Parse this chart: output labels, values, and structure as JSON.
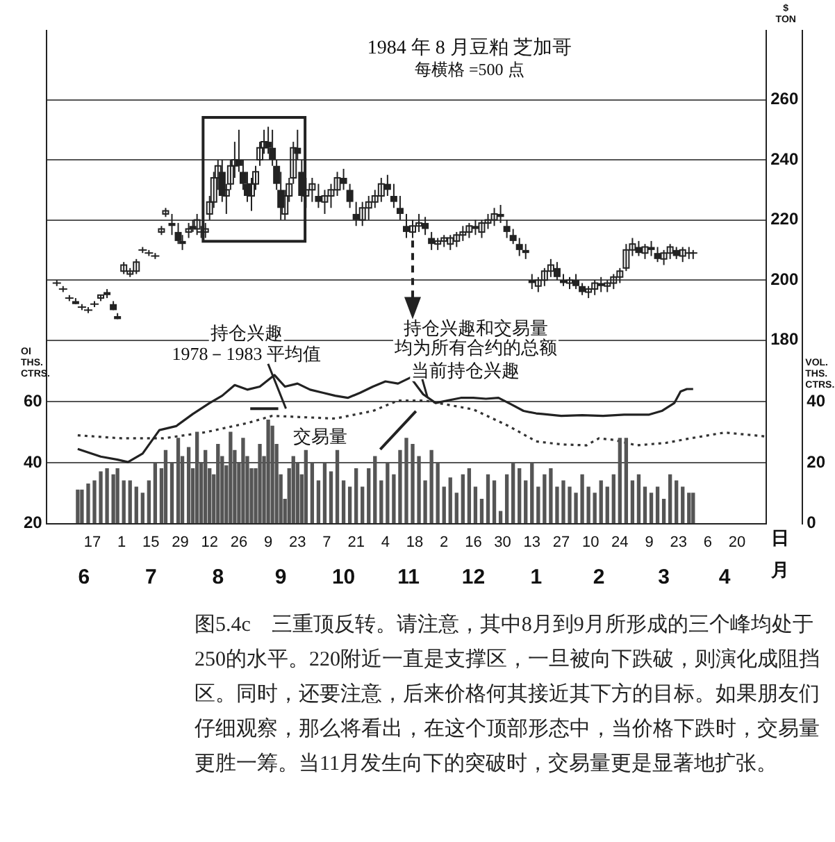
{
  "chart_data": {
    "type": "candlestick",
    "title": "1984 年 8 月豆粕 芝加哥",
    "subtitle": "每横格 =500 点",
    "ylabel": "$ TON",
    "y2label": "VOL. THS. CTRS.",
    "y3label": "OI THS. CTRS.",
    "xlabel": "日",
    "x2label": "月",
    "annotations": [
      "持仓兴趣",
      "1978－1983 平均值",
      {
        "text": "持仓兴趣和交易量",
        "x": "1983-11-17",
        "y": 215
      },
      "均为所有合约的总额",
      "当前持仓兴趣",
      "交易量",
      "图5.4c　三重顶反转。请注意，其中8月到9月所形成的三个峰均处于250的水平。220附近一直是支撑区，一旦被向下跌破，则演化成阻挡区。同时，还要注意，后来价格何其接近其下方的目标。如果朋友们仔细观察，那么将看出，在这个顶部形态中，当价格下跌时，交易量更胜一筹。当11月发生向下的突破时，交易量更是显著地扩张。"
    ],
    "color": "#222222",
    "x": [
      "1983-05-31",
      "1983-06-03",
      "1983-06-06",
      "1983-06-09",
      "1983-06-12",
      "1983-06-15",
      "1983-06-18",
      "1983-06-21",
      "1983-06-24",
      "1983-06-27",
      "1983-06-29",
      "1983-07-02",
      "1983-07-05",
      "1983-07-08",
      "1983-07-11",
      "1983-07-14",
      "1983-07-17",
      "1983-07-20",
      "1983-07-22",
      "1983-07-25",
      "1983-07-28",
      "1983-07-30",
      "1983-08-02",
      "1983-08-04",
      "1983-08-06",
      "1983-08-08",
      "1983-08-10",
      "1983-08-12",
      "1983-08-14",
      "1983-08-16",
      "1983-08-18",
      "1983-08-20",
      "1983-08-22",
      "1983-08-24",
      "1983-08-26",
      "1983-08-28",
      "1983-08-30",
      "1983-09-01",
      "1983-09-03",
      "1983-09-05",
      "1983-09-07",
      "1983-09-09",
      "1983-09-11",
      "1983-09-13",
      "1983-09-15",
      "1983-09-17",
      "1983-09-19",
      "1983-09-21",
      "1983-09-23",
      "1983-09-25",
      "1983-09-27",
      "1983-09-30",
      "1983-10-03",
      "1983-10-06",
      "1983-10-09",
      "1983-10-12",
      "1983-10-15",
      "1983-10-18",
      "1983-10-21",
      "1983-10-24",
      "1983-10-27",
      "1983-10-30",
      "1983-11-02",
      "1983-11-05",
      "1983-11-08",
      "1983-11-11",
      "1983-11-14",
      "1983-11-17",
      "1983-11-20",
      "1983-11-23",
      "1983-11-26",
      "1983-11-29",
      "1983-12-02",
      "1983-12-05",
      "1983-12-08",
      "1983-12-11",
      "1983-12-14",
      "1983-12-17",
      "1983-12-20",
      "1983-12-23",
      "1983-12-26",
      "1983-12-29",
      "1984-01-01",
      "1984-01-04",
      "1984-01-07",
      "1984-01-10",
      "1984-01-13",
      "1984-01-16",
      "1984-01-19",
      "1984-01-22",
      "1984-01-25",
      "1984-01-28",
      "1984-01-31",
      "1984-02-03",
      "1984-02-06",
      "1984-02-09",
      "1984-02-12",
      "1984-02-15",
      "1984-02-18",
      "1984-02-21",
      "1984-02-24",
      "1984-02-27",
      "1984-03-01",
      "1984-03-04",
      "1984-03-07",
      "1984-03-10",
      "1984-03-13",
      "1984-03-16",
      "1984-03-19",
      "1984-03-22",
      "1984-03-25",
      "1984-03-28",
      "1984-03-30"
    ],
    "ohlc": [
      [
        199,
        200,
        198,
        199
      ],
      [
        197,
        198,
        196,
        197
      ],
      [
        194,
        195,
        193,
        194
      ],
      [
        193,
        194,
        192,
        192
      ],
      [
        191,
        192,
        190,
        191
      ],
      [
        190,
        191,
        189,
        190
      ],
      [
        192,
        193,
        191,
        192
      ],
      [
        194,
        195,
        193,
        195
      ],
      [
        196,
        197,
        194,
        195
      ],
      [
        192,
        193,
        190,
        190
      ],
      [
        188,
        189,
        187,
        187
      ],
      [
        203,
        206,
        202,
        205
      ],
      [
        202,
        204,
        201,
        203
      ],
      [
        203,
        207,
        202,
        206
      ],
      [
        210,
        211,
        209,
        210
      ],
      [
        209,
        210,
        208,
        209
      ],
      [
        208,
        209,
        207,
        208
      ],
      [
        216,
        218,
        215,
        217
      ],
      [
        222,
        224,
        221,
        223
      ],
      [
        219,
        222,
        215,
        218
      ],
      [
        216,
        219,
        212,
        213
      ],
      [
        213,
        215,
        210,
        212
      ],
      [
        216,
        219,
        214,
        217
      ],
      [
        218,
        220,
        216,
        217
      ],
      [
        217,
        222,
        215,
        220
      ],
      [
        216,
        218,
        214,
        216
      ],
      [
        216,
        219,
        214,
        217
      ],
      [
        222,
        228,
        220,
        226
      ],
      [
        226,
        236,
        224,
        234
      ],
      [
        234,
        240,
        230,
        238
      ],
      [
        236,
        240,
        226,
        228
      ],
      [
        228,
        232,
        222,
        230
      ],
      [
        232,
        240,
        230,
        238
      ],
      [
        238,
        246,
        234,
        240
      ],
      [
        240,
        250,
        236,
        238
      ],
      [
        236,
        240,
        230,
        232
      ],
      [
        232,
        236,
        226,
        228
      ],
      [
        228,
        234,
        223,
        232
      ],
      [
        232,
        238,
        230,
        236
      ],
      [
        240,
        246,
        238,
        244
      ],
      [
        244,
        250,
        242,
        246
      ],
      [
        246,
        251,
        242,
        244
      ],
      [
        244,
        250,
        238,
        240
      ],
      [
        238,
        240,
        230,
        232
      ],
      [
        230,
        236,
        220,
        224
      ],
      [
        222,
        230,
        220,
        228
      ],
      [
        228,
        234,
        226,
        232
      ],
      [
        234,
        246,
        232,
        244
      ],
      [
        244,
        250,
        240,
        242
      ],
      [
        236,
        240,
        226,
        228
      ],
      [
        228,
        234,
        224,
        230
      ],
      [
        230,
        234,
        226,
        232
      ],
      [
        228,
        232,
        224,
        226
      ],
      [
        226,
        230,
        222,
        228
      ],
      [
        228,
        232,
        224,
        230
      ],
      [
        230,
        236,
        228,
        234
      ],
      [
        234,
        237,
        230,
        232
      ],
      [
        230,
        232,
        224,
        226
      ],
      [
        222,
        226,
        218,
        220
      ],
      [
        220,
        226,
        218,
        224
      ],
      [
        224,
        228,
        220,
        226
      ],
      [
        226,
        230,
        224,
        228
      ],
      [
        228,
        234,
        226,
        232
      ],
      [
        232,
        235,
        228,
        230
      ],
      [
        228,
        232,
        224,
        226
      ],
      [
        224,
        228,
        220,
        222
      ],
      [
        218,
        222,
        214,
        216
      ],
      [
        216,
        220,
        214,
        218
      ],
      [
        218,
        222,
        216,
        219
      ],
      [
        219,
        221,
        215,
        217
      ],
      [
        214,
        216,
        210,
        212
      ],
      [
        212,
        214,
        210,
        213
      ],
      [
        213,
        215,
        211,
        214
      ],
      [
        212,
        215,
        210,
        214
      ],
      [
        213,
        216,
        211,
        215
      ],
      [
        215,
        218,
        213,
        216
      ],
      [
        216,
        219,
        214,
        218
      ],
      [
        218,
        220,
        215,
        217
      ],
      [
        216,
        220,
        214,
        219
      ],
      [
        219,
        222,
        217,
        220
      ],
      [
        220,
        224,
        218,
        222
      ],
      [
        222,
        225,
        219,
        221
      ],
      [
        218,
        220,
        214,
        216
      ],
      [
        215,
        217,
        212,
        213
      ],
      [
        212,
        214,
        208,
        210
      ],
      [
        210,
        212,
        207,
        209
      ],
      [
        200,
        202,
        197,
        199
      ],
      [
        198,
        201,
        196,
        200
      ],
      [
        200,
        204,
        198,
        203
      ],
      [
        203,
        207,
        201,
        205
      ],
      [
        204,
        206,
        200,
        201
      ],
      [
        200,
        202,
        198,
        199
      ],
      [
        199,
        201,
        197,
        200
      ],
      [
        200,
        202,
        197,
        198
      ],
      [
        198,
        199,
        195,
        196
      ],
      [
        196,
        198,
        194,
        197
      ],
      [
        197,
        200,
        195,
        199
      ],
      [
        199,
        201,
        196,
        198
      ],
      [
        198,
        200,
        196,
        199
      ],
      [
        199,
        202,
        197,
        201
      ],
      [
        201,
        204,
        199,
        203
      ],
      [
        204,
        212,
        203,
        210
      ],
      [
        210,
        214,
        208,
        212
      ],
      [
        211,
        213,
        208,
        209
      ],
      [
        209,
        212,
        207,
        211
      ],
      [
        211,
        213,
        208,
        210
      ],
      [
        209,
        211,
        206,
        207
      ],
      [
        207,
        210,
        205,
        209
      ],
      [
        209,
        212,
        207,
        211
      ],
      [
        210,
        211,
        207,
        208
      ],
      [
        208,
        211,
        206,
        210
      ],
      [
        209,
        211,
        207,
        209
      ],
      [
        209,
        210,
        207,
        209
      ]
    ],
    "series": [
      {
        "type": "bar",
        "axis": "y2",
        "color": "#555555",
        "x": [
          "1983-06-10",
          "1983-06-12",
          "1983-06-15",
          "1983-06-18",
          "1983-06-21",
          "1983-06-24",
          "1983-06-27",
          "1983-06-29",
          "1983-07-02",
          "1983-07-05",
          "1983-07-08",
          "1983-07-11",
          "1983-07-14",
          "1983-07-17",
          "1983-07-20",
          "1983-07-22",
          "1983-07-25",
          "1983-07-28",
          "1983-07-30",
          "1983-08-02",
          "1983-08-04",
          "1983-08-06",
          "1983-08-08",
          "1983-08-10",
          "1983-08-12",
          "1983-08-14",
          "1983-08-16",
          "1983-08-18",
          "1983-08-20",
          "1983-08-22",
          "1983-08-24",
          "1983-08-26",
          "1983-08-28",
          "1983-08-30",
          "1983-09-01",
          "1983-09-03",
          "1983-09-05",
          "1983-09-07",
          "1983-09-09",
          "1983-09-11",
          "1983-09-13",
          "1983-09-15",
          "1983-09-17",
          "1983-09-19",
          "1983-09-21",
          "1983-09-23",
          "1983-09-25",
          "1983-09-27",
          "1983-09-30",
          "1983-10-03",
          "1983-10-06",
          "1983-10-09",
          "1983-10-12",
          "1983-10-15",
          "1983-10-18",
          "1983-10-21",
          "1983-10-24",
          "1983-10-27",
          "1983-10-30",
          "1983-11-02",
          "1983-11-05",
          "1983-11-08",
          "1983-11-11",
          "1983-11-14",
          "1983-11-17",
          "1983-11-20",
          "1983-11-23",
          "1983-11-26",
          "1983-11-29",
          "1983-12-02",
          "1983-12-05",
          "1983-12-08",
          "1983-12-11",
          "1983-12-14",
          "1983-12-17",
          "1983-12-20",
          "1983-12-23",
          "1983-12-26",
          "1983-12-29",
          "1984-01-01",
          "1984-01-04",
          "1984-01-07",
          "1984-01-10",
          "1984-01-13",
          "1984-01-16",
          "1984-01-19",
          "1984-01-22",
          "1984-01-25",
          "1984-01-28",
          "1984-01-31",
          "1984-02-03",
          "1984-02-06",
          "1984-02-09",
          "1984-02-12",
          "1984-02-15",
          "1984-02-18",
          "1984-02-21",
          "1984-02-24",
          "1984-02-27",
          "1984-03-01",
          "1984-03-04",
          "1984-03-07",
          "1984-03-10",
          "1984-03-13",
          "1984-03-16",
          "1984-03-19",
          "1984-03-22",
          "1984-03-25",
          "1984-03-28",
          "1984-03-30"
        ],
        "values": [
          11,
          11,
          13,
          14,
          17,
          18,
          16,
          18,
          14,
          14,
          12,
          10,
          14,
          20,
          18,
          24,
          20,
          28,
          22,
          25,
          18,
          30,
          20,
          24,
          18,
          16,
          26,
          22,
          19,
          30,
          24,
          20,
          28,
          22,
          18,
          18,
          26,
          22,
          34,
          32,
          26,
          16,
          8,
          18,
          22,
          20,
          16,
          24,
          20,
          14,
          20,
          17,
          24,
          14,
          12,
          18,
          12,
          18,
          22,
          14,
          20,
          16,
          24,
          28,
          26,
          22,
          14,
          24,
          20,
          12,
          15,
          10,
          16,
          18,
          12,
          8,
          16,
          14,
          4,
          16,
          20,
          18,
          14,
          20,
          12,
          16,
          18,
          12,
          14,
          12,
          10,
          16,
          12,
          10,
          14,
          12,
          16,
          28,
          28,
          14,
          16,
          12,
          10,
          12,
          8,
          16,
          14,
          12,
          10,
          10
        ]
      },
      {
        "type": "line",
        "axis": "y3",
        "color": "#222222",
        "line_style": "solid",
        "x": [
          "1983-06-10",
          "1983-06-21",
          "1983-06-29",
          "1983-07-04",
          "1983-07-11",
          "1983-07-19",
          "1983-07-27",
          "1983-08-04",
          "1983-08-12",
          "1983-08-18",
          "1983-08-24",
          "1983-08-30",
          "1983-09-05",
          "1983-09-12",
          "1983-09-17",
          "1983-09-23",
          "1983-09-29",
          "1983-10-05",
          "1983-10-11",
          "1983-10-17",
          "1983-10-23",
          "1983-10-29",
          "1983-11-04",
          "1983-11-10",
          "1983-11-16",
          "1983-11-22",
          "1983-11-28",
          "1983-12-04",
          "1983-12-10",
          "1983-12-16",
          "1983-12-22",
          "1983-12-28",
          "1984-01-03",
          "1984-01-09",
          "1984-01-15",
          "1984-01-18",
          "1984-01-27",
          "1984-02-06",
          "1984-02-16",
          "1984-02-26",
          "1984-03-09",
          "1984-03-15",
          "1984-03-21",
          "1984-03-24",
          "1984-03-27",
          "1984-03-30"
        ],
        "values": [
          44.5,
          42,
          41,
          40.2,
          43,
          50.7,
          52,
          56,
          59.6,
          62,
          65.5,
          64,
          65,
          68.8,
          65,
          66,
          64,
          63,
          62,
          61.3,
          63,
          65,
          66.7,
          66,
          68,
          62.5,
          59.6,
          60.5,
          61.3,
          61.3,
          61,
          61.3,
          59.2,
          57,
          56.2,
          56,
          55.4,
          55.6,
          55.4,
          55.8,
          55.8,
          57,
          59.6,
          63.4,
          64.2,
          64.2
        ]
      },
      {
        "type": "line",
        "axis": "y3",
        "color": "#333333",
        "line_style": "dotted",
        "x": [
          "1983-06-10",
          "1983-07-01",
          "1983-07-21",
          "1983-08-10",
          "1983-08-30",
          "1983-09-11",
          "1983-09-24",
          "1983-10-11",
          "1983-10-29",
          "1983-11-10",
          "1983-11-23",
          "1983-12-16",
          "1984-01-02",
          "1984-01-15",
          "1984-01-27",
          "1984-02-08",
          "1984-02-14",
          "1984-02-21",
          "1984-03-03",
          "1984-03-17",
          "1984-03-27",
          "1984-04-14",
          "1984-05-04"
        ],
        "values": [
          49,
          48,
          48,
          50,
          53,
          55.4,
          55,
          54.5,
          57,
          60.4,
          60.4,
          57.5,
          52,
          47,
          46,
          45.7,
          48,
          47.5,
          45.7,
          46.5,
          47.8,
          49.9,
          48.6
        ]
      }
    ],
    "xlim": [
      "1983-05-26",
      "1984-05-04"
    ],
    "xticks": [
      {
        "value": "1983-06-17",
        "label": "17"
      },
      {
        "value": "1983-07-01",
        "label": "1"
      },
      {
        "value": "1983-07-15",
        "label": "15"
      },
      {
        "value": "1983-07-29",
        "label": "29"
      },
      {
        "value": "1983-08-12",
        "label": "12"
      },
      {
        "value": "1983-08-26",
        "label": "26"
      },
      {
        "value": "1983-09-09",
        "label": "9"
      },
      {
        "value": "1983-09-23",
        "label": "23"
      },
      {
        "value": "1983-10-07",
        "label": "7"
      },
      {
        "value": "1983-10-21",
        "label": "21"
      },
      {
        "value": "1983-11-04",
        "label": "4"
      },
      {
        "value": "1983-11-18",
        "label": "18"
      },
      {
        "value": "1983-12-02",
        "label": "2"
      },
      {
        "value": "1983-12-16",
        "label": "16"
      },
      {
        "value": "1983-12-30",
        "label": "30"
      },
      {
        "value": "1984-01-13",
        "label": "13"
      },
      {
        "value": "1984-01-27",
        "label": "27"
      },
      {
        "value": "1984-02-10",
        "label": "10"
      },
      {
        "value": "1984-02-24",
        "label": "24"
      },
      {
        "value": "1984-03-09",
        "label": "9"
      },
      {
        "value": "1984-03-23",
        "label": "23"
      },
      {
        "value": "1984-04-06",
        "label": "6"
      },
      {
        "value": "1984-04-20",
        "label": "20"
      }
    ],
    "x2lim": [
      "1983-05-26",
      "1984-05-04"
    ],
    "x2ticks": [
      {
        "value": "1983-06-13",
        "label": "6"
      },
      {
        "value": "1983-07-15",
        "label": "7"
      },
      {
        "value": "1983-08-16",
        "label": "8"
      },
      {
        "value": "1983-09-15",
        "label": "9"
      },
      {
        "value": "1983-10-15",
        "label": "10"
      },
      {
        "value": "1983-11-15",
        "label": "11"
      },
      {
        "value": "1983-12-16",
        "label": "12"
      },
      {
        "value": "1984-01-15",
        "label": "1"
      },
      {
        "value": "1984-02-14",
        "label": "2"
      },
      {
        "value": "1984-03-16",
        "label": "3"
      },
      {
        "value": "1984-04-14",
        "label": "4"
      }
    ],
    "ylim": [
      119,
      283
    ],
    "yticks": [
      180,
      200,
      220,
      240,
      260
    ],
    "y2lim": [
      0,
      162
    ],
    "y2ticks": [
      0,
      20,
      40
    ],
    "y3lim": [
      20,
      182
    ],
    "y3ticks": [
      20,
      40,
      60
    ],
    "grid": "y"
  }
}
